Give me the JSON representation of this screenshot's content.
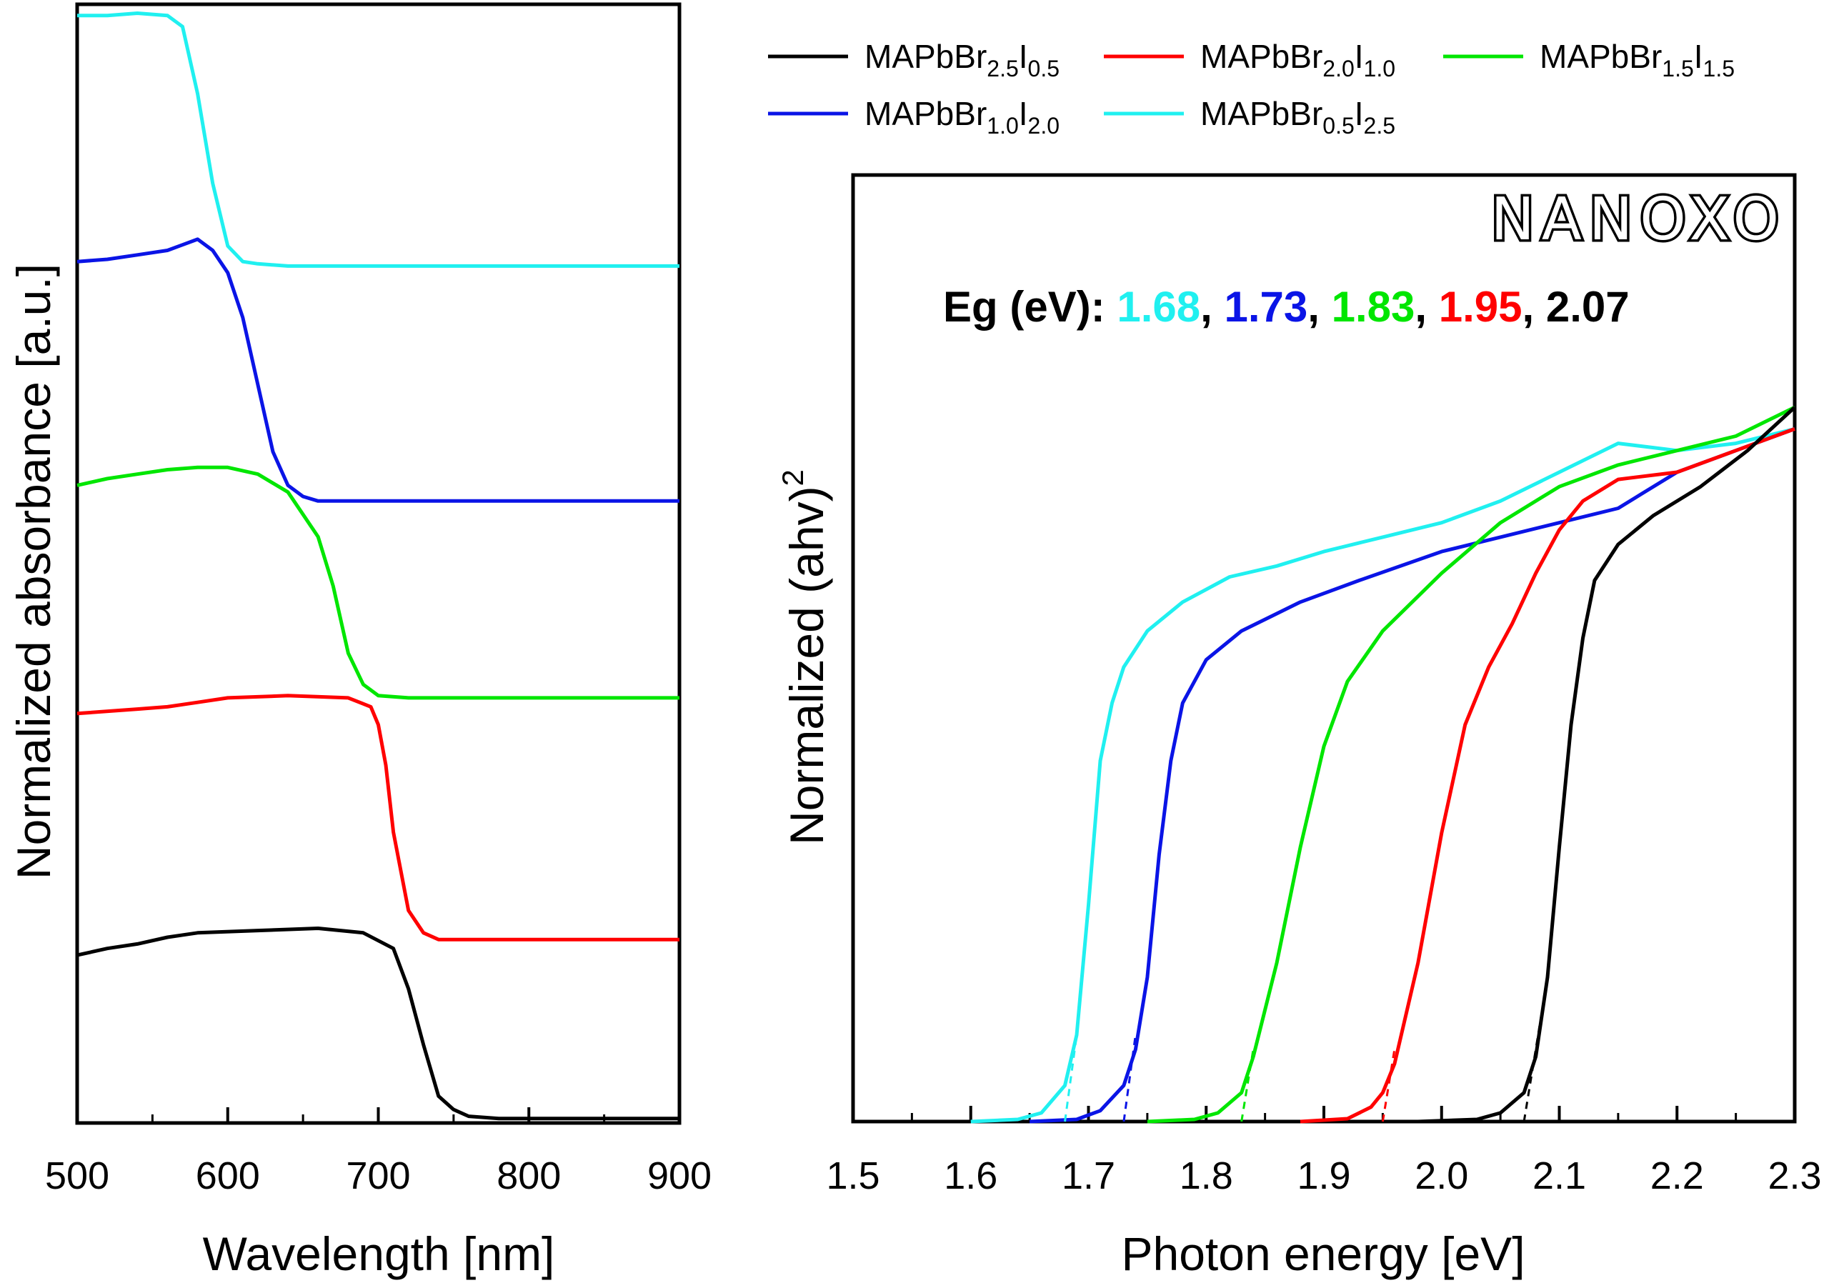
{
  "colors": {
    "black": "#000000",
    "red": "#ff0000",
    "green": "#00e600",
    "blue": "#0a14e6",
    "cyan": "#20f0f0"
  },
  "legend": [
    {
      "base": "MAPbBr",
      "sub1": "2.5",
      "mid": "I",
      "sub2": "0.5",
      "color_key": "black"
    },
    {
      "base": "MAPbBr",
      "sub1": "2.0",
      "mid": "I",
      "sub2": "1.0",
      "color_key": "red"
    },
    {
      "base": "MAPbBr",
      "sub1": "1.5",
      "mid": "I",
      "sub2": "1.5",
      "color_key": "green"
    },
    {
      "base": "MAPbBr",
      "sub1": "1.0",
      "mid": "I",
      "sub2": "2.0",
      "color_key": "blue"
    },
    {
      "base": "MAPbBr",
      "sub1": "0.5",
      "mid": "I",
      "sub2": "2.5",
      "color_key": "cyan"
    }
  ],
  "logo": "NANOXO",
  "eg_annotation": {
    "prefix": "Eg (eV): ",
    "values": [
      {
        "text": "1.68",
        "color_key": "cyan"
      },
      {
        "text": "1.73",
        "color_key": "blue"
      },
      {
        "text": "1.83",
        "color_key": "green"
      },
      {
        "text": "1.95",
        "color_key": "red"
      },
      {
        "text": "2.07",
        "color_key": "black"
      }
    ],
    "separator": ", "
  },
  "chart_data": [
    {
      "type": "line",
      "xlabel": "Wavelength [nm]",
      "ylabel": "Normalized absorbance [a.u.]",
      "xlim": [
        500,
        900
      ],
      "xticks": [
        "500",
        "600",
        "700",
        "800",
        "900"
      ],
      "y_ticks_labeled": false,
      "series": [
        {
          "color_key": "cyan",
          "x": [
            500,
            520,
            540,
            560,
            570,
            580,
            590,
            600,
            610,
            620,
            640,
            700,
            800,
            900
          ],
          "y": [
            4.95,
            4.95,
            4.96,
            4.95,
            4.9,
            4.6,
            4.2,
            3.92,
            3.85,
            3.84,
            3.83,
            3.83,
            3.83,
            3.83
          ]
        },
        {
          "color_key": "blue",
          "x": [
            500,
            520,
            540,
            560,
            580,
            590,
            600,
            610,
            620,
            630,
            640,
            650,
            660,
            680,
            700,
            800,
            900
          ],
          "y": [
            3.85,
            3.86,
            3.88,
            3.9,
            3.95,
            3.9,
            3.8,
            3.6,
            3.3,
            3.0,
            2.85,
            2.8,
            2.78,
            2.78,
            2.78,
            2.78,
            2.78
          ]
        },
        {
          "color_key": "green",
          "x": [
            500,
            520,
            540,
            560,
            580,
            600,
            620,
            640,
            660,
            670,
            680,
            690,
            700,
            720,
            750,
            800,
            900
          ],
          "y": [
            2.85,
            2.88,
            2.9,
            2.92,
            2.93,
            2.93,
            2.9,
            2.82,
            2.62,
            2.4,
            2.1,
            1.96,
            1.91,
            1.9,
            1.9,
            1.9,
            1.9
          ]
        },
        {
          "color_key": "red",
          "x": [
            500,
            540,
            560,
            580,
            600,
            640,
            680,
            695,
            700,
            705,
            710,
            720,
            730,
            740,
            750,
            800,
            900
          ],
          "y": [
            1.83,
            1.85,
            1.86,
            1.88,
            1.9,
            1.91,
            1.9,
            1.86,
            1.78,
            1.6,
            1.3,
            0.95,
            0.85,
            0.82,
            0.82,
            0.82,
            0.82
          ]
        },
        {
          "color_key": "black",
          "x": [
            500,
            520,
            540,
            560,
            580,
            620,
            660,
            690,
            710,
            720,
            730,
            740,
            750,
            760,
            780,
            800,
            900
          ],
          "y": [
            0.75,
            0.78,
            0.8,
            0.83,
            0.85,
            0.86,
            0.87,
            0.85,
            0.78,
            0.6,
            0.35,
            0.12,
            0.06,
            0.03,
            0.02,
            0.02,
            0.02
          ]
        }
      ]
    },
    {
      "type": "line",
      "xlabel": "Photon energy [eV]",
      "ylabel": "Normalized (ahv)^2",
      "ylabel_base": "Normalized (ahv)",
      "ylabel_sup": "2",
      "xlim": [
        1.5,
        2.3
      ],
      "ylim": [
        0,
        1
      ],
      "xticks": [
        "1.5",
        "1.6",
        "1.7",
        "1.8",
        "1.9",
        "2.0",
        "2.1",
        "2.2",
        "2.3"
      ],
      "y_ticks_labeled": false,
      "series": [
        {
          "color_key": "cyan",
          "x": [
            1.6,
            1.64,
            1.66,
            1.68,
            1.69,
            1.7,
            1.71,
            1.72,
            1.73,
            1.75,
            1.78,
            1.82,
            1.86,
            1.9,
            1.95,
            2.0,
            2.05,
            2.1,
            2.15,
            2.2,
            2.25,
            2.3
          ],
          "y": [
            0,
            0.003,
            0.012,
            0.05,
            0.12,
            0.3,
            0.5,
            0.58,
            0.63,
            0.68,
            0.72,
            0.755,
            0.77,
            0.79,
            0.81,
            0.83,
            0.86,
            0.9,
            0.94,
            0.93,
            0.94,
            0.96
          ]
        },
        {
          "color_key": "blue",
          "x": [
            1.65,
            1.69,
            1.71,
            1.73,
            1.74,
            1.75,
            1.76,
            1.77,
            1.78,
            1.8,
            1.83,
            1.88,
            1.93,
            2.0,
            2.05,
            2.1,
            2.15,
            2.17,
            2.2,
            2.25,
            2.3
          ],
          "y": [
            0,
            0.003,
            0.015,
            0.05,
            0.1,
            0.2,
            0.37,
            0.5,
            0.58,
            0.64,
            0.68,
            0.72,
            0.75,
            0.79,
            0.81,
            0.83,
            0.85,
            0.87,
            0.9,
            0.93,
            0.96
          ]
        },
        {
          "color_key": "green",
          "x": [
            1.75,
            1.79,
            1.81,
            1.83,
            1.84,
            1.86,
            1.88,
            1.9,
            1.92,
            1.95,
            2.0,
            2.05,
            2.1,
            2.15,
            2.2,
            2.25,
            2.3
          ],
          "y": [
            0,
            0.003,
            0.012,
            0.04,
            0.09,
            0.22,
            0.38,
            0.52,
            0.61,
            0.68,
            0.76,
            0.83,
            0.88,
            0.91,
            0.93,
            0.95,
            0.99
          ]
        },
        {
          "color_key": "red",
          "x": [
            1.88,
            1.92,
            1.94,
            1.95,
            1.96,
            1.98,
            2.0,
            2.02,
            2.04,
            2.06,
            2.08,
            2.1,
            2.12,
            2.15,
            2.2,
            2.25,
            2.3
          ],
          "y": [
            0,
            0.004,
            0.02,
            0.04,
            0.08,
            0.22,
            0.4,
            0.55,
            0.63,
            0.69,
            0.76,
            0.82,
            0.86,
            0.89,
            0.9,
            0.93,
            0.96
          ]
        },
        {
          "color_key": "black",
          "x": [
            1.98,
            2.03,
            2.05,
            2.07,
            2.08,
            2.09,
            2.1,
            2.11,
            2.12,
            2.13,
            2.15,
            2.18,
            2.22,
            2.26,
            2.3
          ],
          "y": [
            0,
            0.003,
            0.012,
            0.04,
            0.09,
            0.2,
            0.38,
            0.55,
            0.67,
            0.75,
            0.8,
            0.84,
            0.88,
            0.93,
            0.99
          ]
        }
      ],
      "tangents": [
        {
          "color_key": "cyan",
          "x0": 1.68,
          "x1": 1.69,
          "y1": 0.12
        },
        {
          "color_key": "blue",
          "x0": 1.73,
          "x1": 1.74,
          "y1": 0.12
        },
        {
          "color_key": "green",
          "x0": 1.83,
          "x1": 1.84,
          "y1": 0.1
        },
        {
          "color_key": "red",
          "x0": 1.95,
          "x1": 1.96,
          "y1": 0.1
        },
        {
          "color_key": "black",
          "x0": 2.07,
          "x1": 2.085,
          "y1": 0.15
        }
      ]
    }
  ]
}
